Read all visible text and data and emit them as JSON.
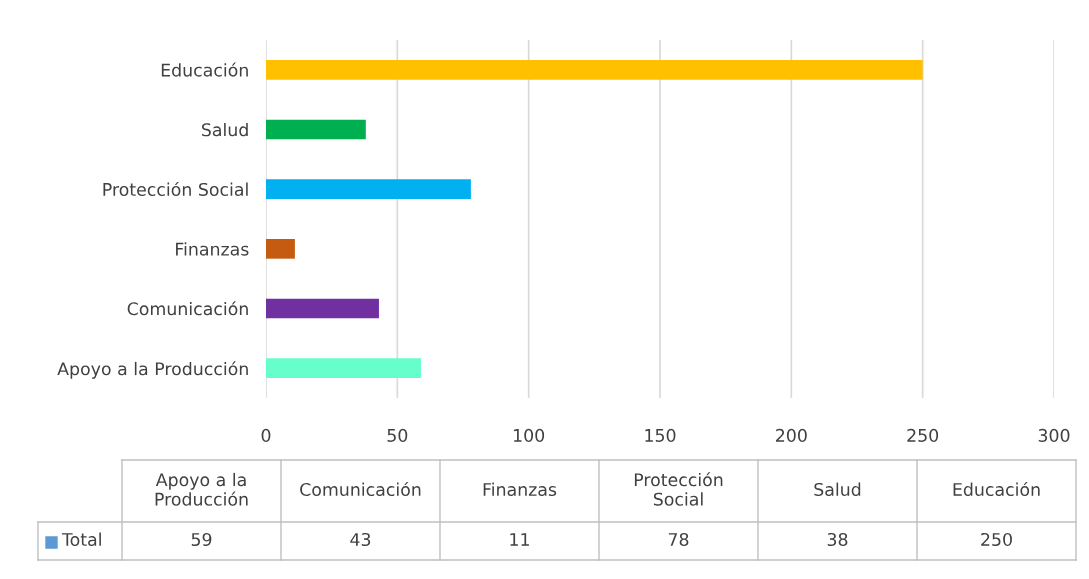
{
  "chart_data": {
    "type": "bar",
    "orientation": "horizontal",
    "categories": [
      "Educación",
      "Salud",
      "Protección Social",
      "Finanzas",
      "Comunicación",
      "Apoyo a la Producción"
    ],
    "series": [
      {
        "name": "Total",
        "color": "#5b9bd5",
        "colors": [
          "#ffc000",
          "#00b050",
          "#00b0f0",
          "#c55a11",
          "#7030a0",
          "#66ffcc"
        ],
        "values": [
          250,
          38,
          78,
          11,
          43,
          59
        ]
      }
    ],
    "xlim": [
      0,
      300
    ],
    "xticks": [
      0,
      50,
      100,
      150,
      200,
      250,
      300
    ],
    "grid": "x",
    "legend": "bottom",
    "annotations": [
      "59",
      "43",
      "11",
      "78",
      "38",
      "250"
    ]
  }
}
